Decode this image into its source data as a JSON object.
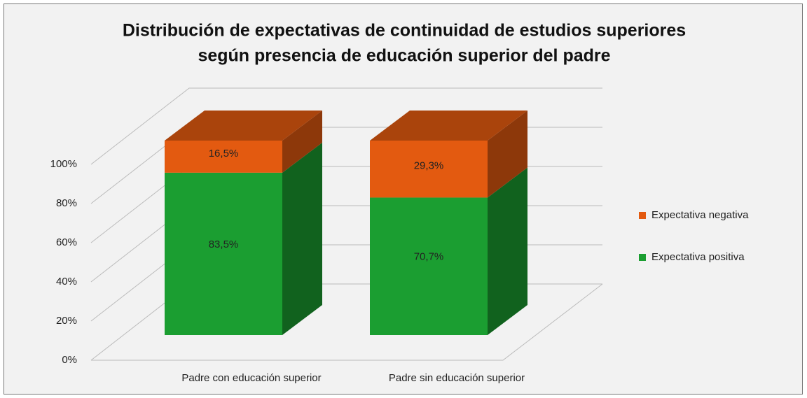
{
  "chart_data": {
    "type": "bar3d_stacked",
    "title": [
      "Distribución de expectativas de continuidad  de estudios superiores",
      "según presencia de educación superior del padre"
    ],
    "categories": [
      "Padre con educación superior",
      "Padre sin educación superior"
    ],
    "series": [
      {
        "name": "Expectativa positiva",
        "color": "#1b9e31",
        "values": [
          83.5,
          70.7
        ],
        "value_labels": [
          "83,5%",
          "70,7%"
        ]
      },
      {
        "name": "Expectativa negativa",
        "color": "#e35a10",
        "values": [
          16.5,
          29.3
        ],
        "value_labels": [
          "16,5%",
          "29,3%"
        ]
      }
    ],
    "ylim": [
      0,
      100
    ],
    "yticks": [
      {
        "value": 0,
        "label": "0%"
      },
      {
        "value": 20,
        "label": "20%"
      },
      {
        "value": 40,
        "label": "40%"
      },
      {
        "value": 60,
        "label": "60%"
      },
      {
        "value": 80,
        "label": "80%"
      },
      {
        "value": 100,
        "label": "100%"
      }
    ],
    "grid": true,
    "legend": "right"
  }
}
